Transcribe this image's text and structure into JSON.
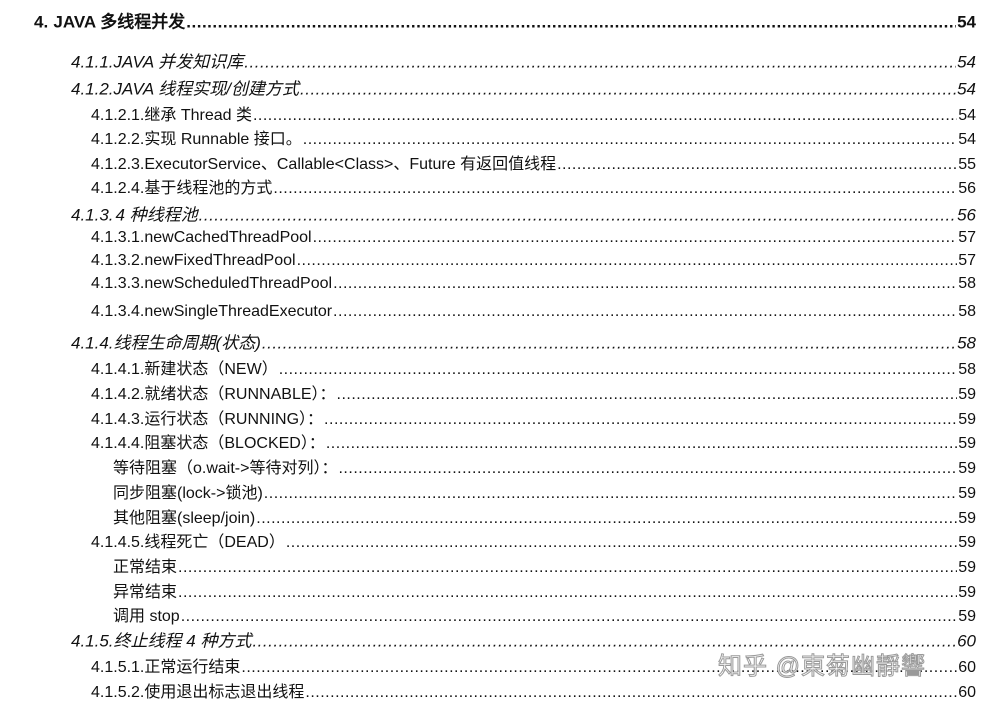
{
  "toc": [
    {
      "level": 1,
      "num": "4.",
      "title": "JAVA 多线程并发",
      "page": "54"
    },
    {
      "level": 3,
      "num": "4.1.1.",
      "title": "JAVA 并发知识库",
      "page": "54"
    },
    {
      "level": 3,
      "num": "4.1.2.",
      "title": "JAVA 线程实现/创建方式",
      "page": "54"
    },
    {
      "level": 4,
      "num": "4.1.2.1.",
      "title": "继承 Thread 类",
      "page": "54"
    },
    {
      "level": 4,
      "num": "4.1.2.2.",
      "title": "实现 Runnable 接口。",
      "page": "54"
    },
    {
      "level": 4,
      "num": "4.1.2.3.",
      "title": "ExecutorService、Callable<Class>、Future 有返回值线程",
      "page": "55"
    },
    {
      "level": 4,
      "num": "4.1.2.4.",
      "title": "基于线程池的方式",
      "page": "56"
    },
    {
      "level": 3,
      "num": "4.1.3.",
      "title": "4 种线程池",
      "page": "56"
    },
    {
      "level": 4,
      "num": "4.1.3.1.",
      "title": "newCachedThreadPool",
      "page": "57"
    },
    {
      "level": 4,
      "num": "4.1.3.2.",
      "title": "newFixedThreadPool",
      "page": "57"
    },
    {
      "level": 4,
      "num": "4.1.3.3.",
      "title": "newScheduledThreadPool",
      "page": "58"
    },
    {
      "level": 4,
      "num": "4.1.3.4.",
      "title": "newSingleThreadExecutor",
      "page": "58"
    },
    {
      "level": 3,
      "num": "4.1.4.",
      "title": "线程生命周期(状态)",
      "page": "58"
    },
    {
      "level": 4,
      "num": "4.1.4.1.",
      "title": "新建状态（NEW）",
      "page": "58"
    },
    {
      "level": 4,
      "num": "4.1.4.2.",
      "title": "就绪状态（RUNNABLE）：",
      "page": "59"
    },
    {
      "level": 4,
      "num": "4.1.4.3.",
      "title": "运行状态（RUNNING）：",
      "page": "59"
    },
    {
      "level": 4,
      "num": "4.1.4.4.",
      "title": "阻塞状态（BLOCKED）：",
      "page": "59"
    },
    {
      "level": 5,
      "num": "",
      "title": "等待阻塞（o.wait->等待对列）：",
      "page": "59"
    },
    {
      "level": 5,
      "num": "",
      "title": "同步阻塞(lock->锁池)",
      "page": "59"
    },
    {
      "level": 5,
      "num": "",
      "title": "其他阻塞(sleep/join)",
      "page": "59"
    },
    {
      "level": 4,
      "num": "4.1.4.5.",
      "title": "线程死亡（DEAD）",
      "page": "59"
    },
    {
      "level": 5,
      "num": "",
      "title": "正常结束",
      "page": "59"
    },
    {
      "level": 5,
      "num": "",
      "title": "异常结束",
      "page": "59"
    },
    {
      "level": 5,
      "num": "",
      "title": "调用 stop",
      "page": "59"
    },
    {
      "level": 3,
      "num": "4.1.5.",
      "title": "终止线程 4 种方式",
      "page": "60"
    },
    {
      "level": 4,
      "num": "4.1.5.1.",
      "title": "正常运行结束",
      "page": "60"
    },
    {
      "level": 4,
      "num": "4.1.5.2.",
      "title": "使用退出标志退出线程",
      "page": "60"
    }
  ],
  "watermark": "知乎 @東菊幽靜響"
}
